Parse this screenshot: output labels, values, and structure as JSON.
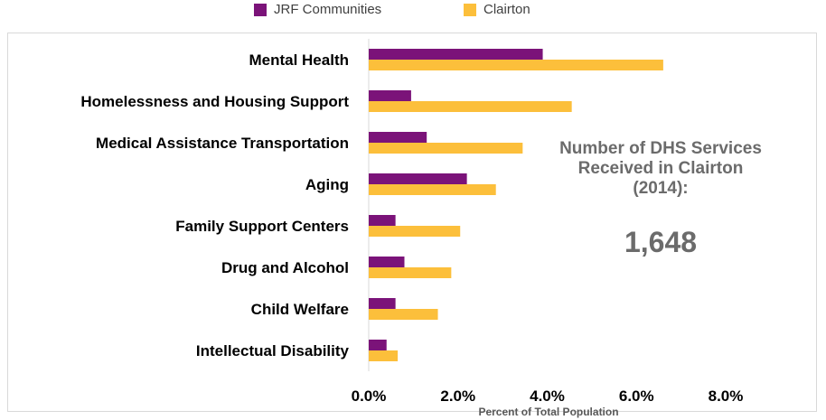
{
  "chart_data": {
    "type": "bar",
    "orientation": "horizontal",
    "categories": [
      "Mental Health",
      "Homelessness and Housing Support",
      "Medical Assistance Transportation",
      "Aging",
      "Family Support Centers",
      "Drug and Alcohol",
      "Child Welfare",
      "Intellectual Disability"
    ],
    "series": [
      {
        "name": "JRF Communities",
        "color": "#7b1379",
        "values": [
          3.9,
          0.95,
          1.3,
          2.2,
          0.6,
          0.8,
          0.6,
          0.4
        ]
      },
      {
        "name": "Clairton",
        "color": "#fcbf3b",
        "values": [
          6.6,
          4.55,
          3.45,
          2.85,
          2.05,
          1.85,
          1.55,
          0.65
        ]
      }
    ],
    "xlim": [
      0,
      8
    ],
    "xticks": [
      "0.0%",
      "2.0%",
      "4.0%",
      "6.0%",
      "8.0%"
    ],
    "xlabel": "Percent of Total Population",
    "grid": false,
    "legend_position": "top"
  },
  "callout": {
    "title_lines": [
      "Number of DHS Services",
      "Received in Clairton",
      "(2014):"
    ],
    "value": "1,648"
  }
}
